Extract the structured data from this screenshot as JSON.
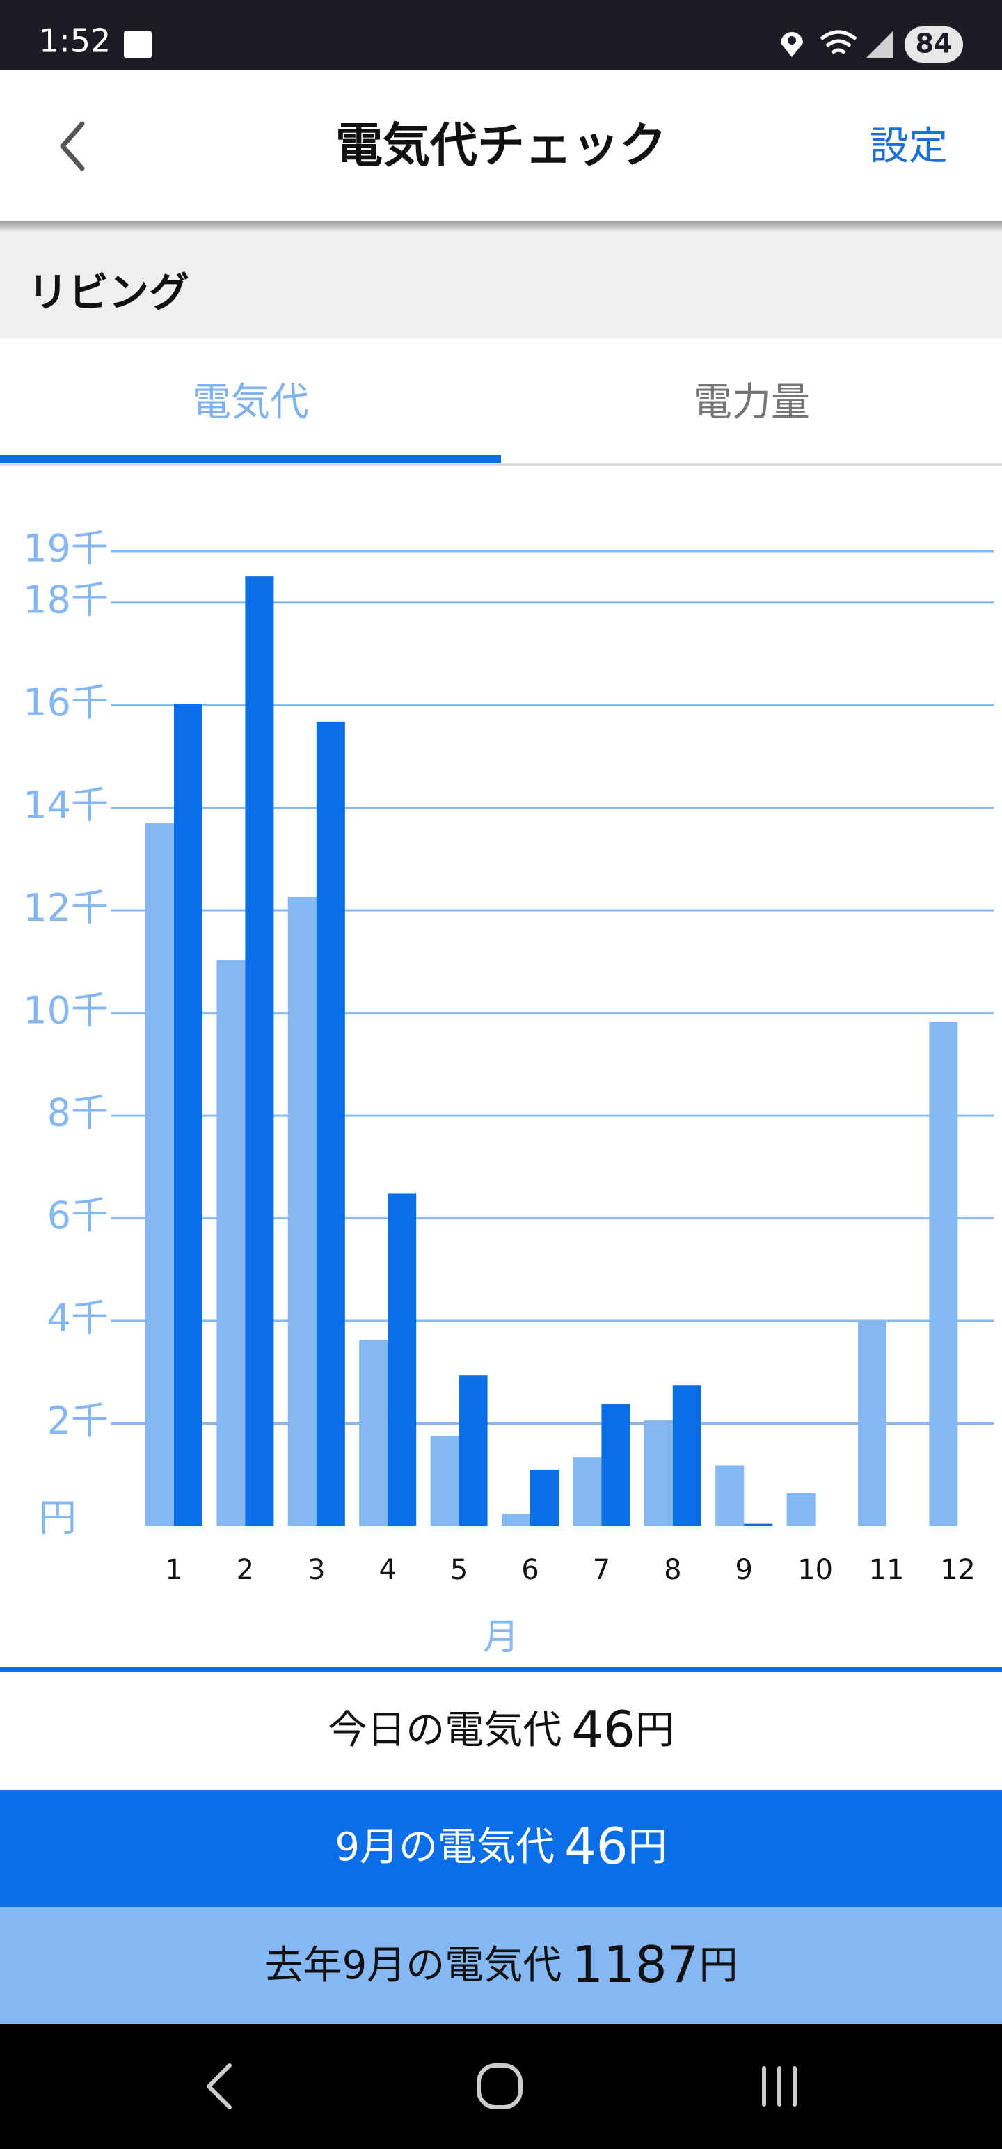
{
  "status_bar": {
    "time": "1:52",
    "battery": "84"
  },
  "header": {
    "title": "電気代チェック",
    "settings": "設定"
  },
  "section": {
    "title": "リビング"
  },
  "tabs": [
    "電気代",
    "電力量"
  ],
  "chart_data": {
    "type": "bar",
    "categories": [
      "1",
      "2",
      "3",
      "4",
      "5",
      "6",
      "7",
      "8",
      "9",
      "10",
      "11",
      "12"
    ],
    "series": [
      {
        "color": "#85b8f2",
        "values": [
          13700,
          11030,
          12260,
          3630,
          1760,
          240,
          1340,
          2060,
          1187,
          640,
          3980,
          9830
        ]
      },
      {
        "color": "#0a6fe6",
        "values": [
          16030,
          18510,
          15680,
          6490,
          2940,
          1100,
          2380,
          2750,
          46,
          null,
          null,
          null
        ]
      }
    ],
    "ylim": [
      0,
      19000
    ],
    "yticks": [
      {
        "value": 2000,
        "label": "2千"
      },
      {
        "value": 4000,
        "label": "4千"
      },
      {
        "value": 6000,
        "label": "6千"
      },
      {
        "value": 8000,
        "label": "8千"
      },
      {
        "value": 10000,
        "label": "10千"
      },
      {
        "value": 12000,
        "label": "12千"
      },
      {
        "value": 14000,
        "label": "14千"
      },
      {
        "value": 16000,
        "label": "16千"
      },
      {
        "value": 18000,
        "label": "18千"
      },
      {
        "value": 19000,
        "label": "19千"
      }
    ],
    "y_label": "円",
    "x_label": "月",
    "grid": true,
    "grid_color": "#85b8f2"
  },
  "summary": [
    {
      "label": "今日の電気代",
      "amount": "46",
      "unit": "円"
    },
    {
      "label": "9月の電気代",
      "amount": "46",
      "unit": "円"
    },
    {
      "label": "去年9月の電気代",
      "amount": "1187",
      "unit": "円"
    }
  ]
}
